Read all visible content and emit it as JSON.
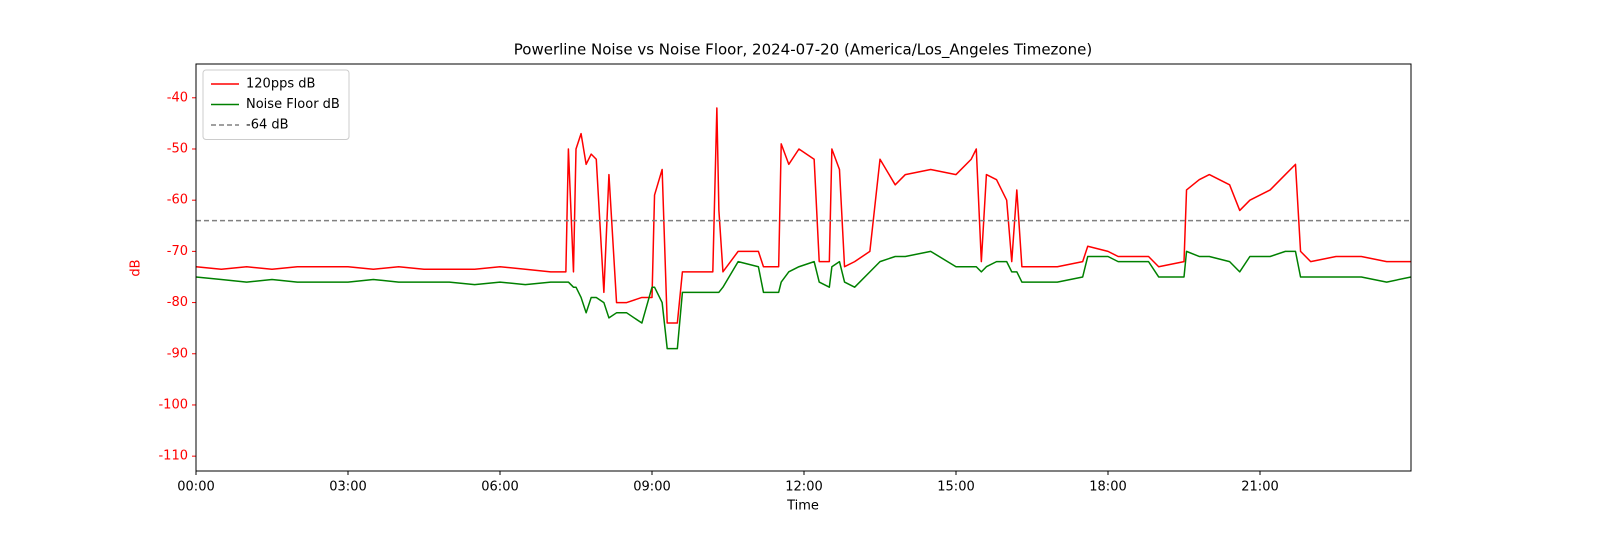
{
  "chart_data": {
    "type": "line",
    "title": "Powerline Noise vs Noise Floor, 2024-07-20 (America/Los_Angeles Timezone)",
    "x_label": "Time",
    "y_label": "dB",
    "y_label_color": "#ff0000",
    "xlim": [
      0,
      23.98
    ],
    "ylim": [
      -112.9,
      -33.4
    ],
    "xticks": [
      {
        "value": 0,
        "label": "00:00"
      },
      {
        "value": 3,
        "label": "03:00"
      },
      {
        "value": 6,
        "label": "06:00"
      },
      {
        "value": 9,
        "label": "09:00"
      },
      {
        "value": 12,
        "label": "12:00"
      },
      {
        "value": 15,
        "label": "15:00"
      },
      {
        "value": 18,
        "label": "18:00"
      },
      {
        "value": 21,
        "label": "21:00"
      }
    ],
    "yticks": [
      -40,
      -50,
      -60,
      -70,
      -80,
      -90,
      -100,
      -110
    ],
    "grid": false,
    "legend": "upper left",
    "x": [
      0,
      0.5,
      1,
      1.5,
      2,
      2.5,
      3,
      3.5,
      4,
      4.5,
      5,
      5.5,
      6,
      6.5,
      7,
      7.3,
      7.35,
      7.45,
      7.5,
      7.6,
      7.7,
      7.8,
      7.9,
      8.05,
      8.15,
      8.3,
      8.5,
      8.8,
      9.0,
      9.05,
      9.2,
      9.3,
      9.5,
      9.6,
      10.2,
      10.28,
      10.32,
      10.4,
      10.7,
      11.1,
      11.2,
      11.5,
      11.55,
      11.7,
      11.9,
      12.2,
      12.3,
      12.5,
      12.55,
      12.7,
      12.8,
      13.0,
      13.3,
      13.5,
      13.8,
      14.0,
      14.5,
      15.0,
      15.3,
      15.4,
      15.5,
      15.6,
      15.8,
      16.0,
      16.1,
      16.2,
      16.3,
      17.0,
      17.5,
      17.6,
      18.0,
      18.2,
      18.8,
      19.0,
      19.5,
      19.55,
      19.8,
      20.0,
      20.4,
      20.6,
      20.8,
      21.2,
      21.5,
      21.7,
      21.8,
      22.0,
      22.5,
      23.0,
      23.5,
      23.98
    ],
    "series": [
      {
        "name": "120pps dB",
        "color": "#ff0000",
        "values": [
          -73,
          -73.5,
          -73,
          -73.5,
          -73,
          -73,
          -73,
          -73.5,
          -73,
          -73.5,
          -73.5,
          -73.5,
          -73,
          -73.5,
          -74,
          -74,
          -50,
          -74,
          -50,
          -47,
          -53,
          -51,
          -52,
          -78,
          -55,
          -80,
          -80,
          -79,
          -79,
          -59,
          -54,
          -84,
          -84,
          -74,
          -74,
          -42,
          -62,
          -74,
          -70,
          -70,
          -73,
          -73,
          -49,
          -53,
          -50,
          -52,
          -72,
          -72,
          -50,
          -54,
          -73,
          -72,
          -70,
          -52,
          -57,
          -55,
          -54,
          -55,
          -52,
          -50,
          -72,
          -55,
          -56,
          -60,
          -72,
          -58,
          -73,
          -73,
          -72,
          -69,
          -70,
          -71,
          -71,
          -73,
          -72,
          -58,
          -56,
          -55,
          -57,
          -62,
          -60,
          -58,
          -55,
          -53,
          -70,
          -72,
          -71,
          -71,
          -72,
          -72
        ]
      },
      {
        "name": "Noise Floor dB",
        "color": "#008000",
        "values": [
          -75,
          -75.5,
          -76,
          -75.5,
          -76,
          -76,
          -76,
          -75.5,
          -76,
          -76,
          -76,
          -76.5,
          -76,
          -76.5,
          -76,
          -76,
          -76,
          -77,
          -77,
          -79,
          -82,
          -79,
          -79,
          -80,
          -83,
          -82,
          -82,
          -84,
          -77,
          -77,
          -80,
          -89,
          -89,
          -78,
          -78,
          -78,
          -78,
          -77,
          -72,
          -73,
          -78,
          -78,
          -76,
          -74,
          -73,
          -72,
          -76,
          -77,
          -73,
          -72,
          -76,
          -77,
          -74,
          -72,
          -71,
          -71,
          -70,
          -73,
          -73,
          -73,
          -74,
          -73,
          -72,
          -72,
          -74,
          -74,
          -76,
          -76,
          -75,
          -71,
          -71,
          -72,
          -72,
          -75,
          -75,
          -70,
          -71,
          -71,
          -72,
          -74,
          -71,
          -71,
          -70,
          -70,
          -75,
          -75,
          -75,
          -75,
          -76,
          -75
        ]
      }
    ],
    "reference_line": {
      "name": "-64 dB",
      "value": -64,
      "color": "#808080",
      "dashed": true
    }
  }
}
